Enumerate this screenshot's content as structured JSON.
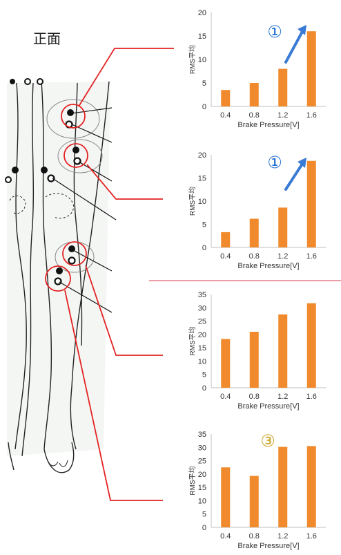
{
  "figure": {
    "front_label": "正面",
    "annotation_symbols": [
      "①",
      "①",
      "",
      "③"
    ]
  },
  "colors": {
    "bar": "#f08a2c",
    "connector": "#e32222",
    "arrow": "#3a7bd5",
    "marker_blue": "#1f6fd1",
    "marker_gold": "#c8a21c",
    "axis": "#bfbfbf",
    "text": "#333333"
  },
  "chart_data": [
    {
      "type": "bar",
      "categories": [
        "0.4",
        "0.8",
        "1.2",
        "1.6"
      ],
      "values": [
        3.5,
        5,
        8,
        16
      ],
      "xlabel": "Brake Pressure[V]",
      "ylabel": "RMS平均",
      "ylim": [
        0,
        20
      ],
      "yticks": [
        0,
        5,
        10,
        15,
        20
      ],
      "annotation": "①",
      "annotation_arrow": true
    },
    {
      "type": "bar",
      "categories": [
        "0.4",
        "0.8",
        "1.2",
        "1.6"
      ],
      "values": [
        3.3,
        6.2,
        8.6,
        18.7
      ],
      "xlabel": "Brake Pressure[V]",
      "ylabel": "RMS平均",
      "ylim": [
        0,
        20
      ],
      "yticks": [
        0,
        5,
        10,
        15,
        20
      ],
      "annotation": "①",
      "annotation_arrow": true
    },
    {
      "type": "bar",
      "categories": [
        "0.4",
        "0.8",
        "1.2",
        "1.6"
      ],
      "values": [
        18.3,
        21,
        27.5,
        31.7
      ],
      "xlabel": "Brake Pressure[V]",
      "ylabel": "RMS平均",
      "ylim": [
        0,
        35
      ],
      "yticks": [
        0,
        5,
        10,
        15,
        20,
        25,
        30,
        35
      ],
      "annotation": "",
      "annotation_arrow": false
    },
    {
      "type": "bar",
      "categories": [
        "0.4",
        "0.8",
        "1.2",
        "1.6"
      ],
      "values": [
        22.5,
        19.3,
        30.2,
        30.5
      ],
      "xlabel": "Brake Pressure[V]",
      "ylabel": "RMS平均",
      "ylim": [
        0,
        35
      ],
      "yticks": [
        0,
        5,
        10,
        15,
        20,
        25,
        30,
        35
      ],
      "annotation": "③",
      "annotation_arrow": false
    }
  ]
}
